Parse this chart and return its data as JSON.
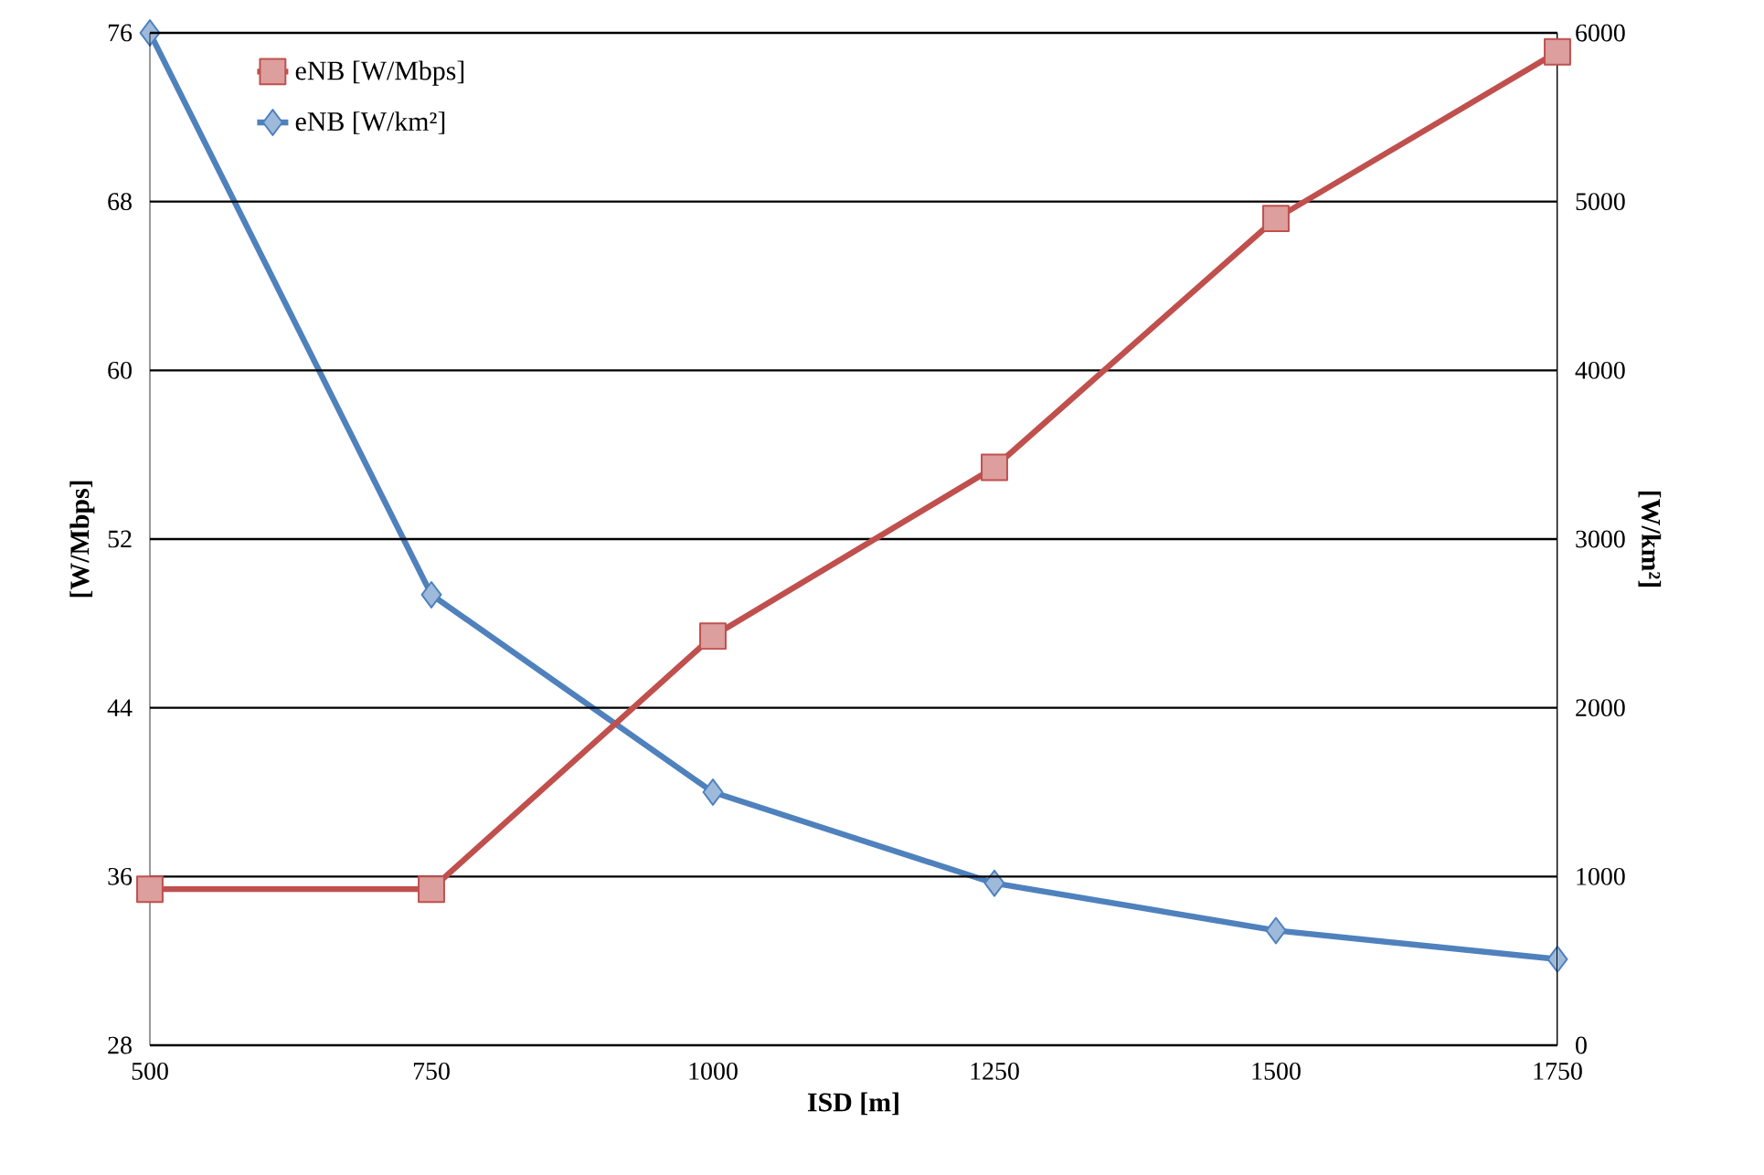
{
  "chart_data": {
    "type": "line",
    "xlabel": "ISD [m]",
    "ylabel": "[W/Mbps]",
    "y2label": "[W/km²]",
    "categories": [
      "500",
      "750",
      "1000",
      "1250",
      "1500",
      "1750"
    ],
    "series": [
      {
        "name": "eNB [W/Mbps]",
        "color": "#c0504d",
        "marker": "square",
        "values": [
          35.4,
          35.4,
          47.4,
          55.4,
          67.2,
          75.1
        ]
      },
      {
        "name": "eNB [W/km²]",
        "color": "#4f81bd",
        "marker": "diamond",
        "axis": "y2",
        "values": [
          6000,
          2670,
          1500,
          960,
          680,
          510
        ]
      }
    ],
    "ylim": [
      28,
      76
    ],
    "yticks": [
      28,
      36,
      44,
      52,
      60,
      68,
      76
    ],
    "y2lim": [
      0,
      6000
    ],
    "y2ticks": [
      0,
      1000,
      2000,
      3000,
      4000,
      5000,
      6000
    ],
    "grid": "y",
    "legend": "top left",
    "line_style": "solid"
  }
}
